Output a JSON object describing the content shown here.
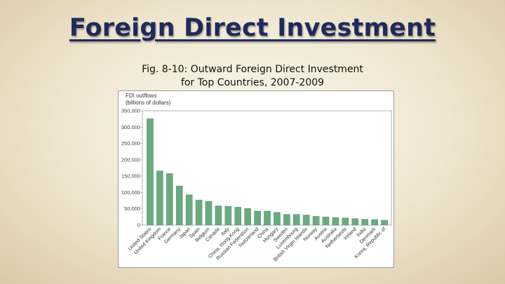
{
  "slide": {
    "title": "Foreign Direct Investment",
    "caption_line1": "Fig. 8-10: Outward Foreign Direct Investment",
    "caption_line2": "for Top Countries, 2007-2009"
  },
  "colors": {
    "title": "#1f2a5c",
    "bar_fill": "#6aaa80",
    "bar_stroke": "#4f8a63"
  },
  "chart_data": {
    "type": "bar",
    "ylabel_line1": "FDI outflows",
    "ylabel_line2": "(billions of dollars)",
    "ylim": [
      0,
      350000
    ],
    "yticks": [
      0,
      50000,
      100000,
      150000,
      200000,
      250000,
      300000,
      350000
    ],
    "ytick_labels": [
      "0",
      "50,000",
      "100,000",
      "150,000",
      "200,000",
      "250,000",
      "300,000",
      "350,000"
    ],
    "grid": false,
    "categories": [
      "United States",
      "United Kingdom",
      "France",
      "Germany",
      "Japan",
      "Spain",
      "Belgium",
      "Canada",
      "Italy",
      "China, Hong Kong",
      "Russian Federation",
      "Switzerland",
      "China",
      "Hungary",
      "Sweden",
      "Luxembourg",
      "British Virgin Islands",
      "Norway",
      "Austria",
      "Australia",
      "Netherlands",
      "Ireland",
      "India",
      "Denmark",
      "Korea, Republic of"
    ],
    "values": [
      326000,
      166000,
      158000,
      120000,
      93000,
      77000,
      73000,
      59000,
      58000,
      55000,
      51000,
      43000,
      43000,
      39000,
      33000,
      33000,
      31000,
      27000,
      25000,
      23000,
      22000,
      20000,
      18000,
      17000,
      15000
    ]
  }
}
